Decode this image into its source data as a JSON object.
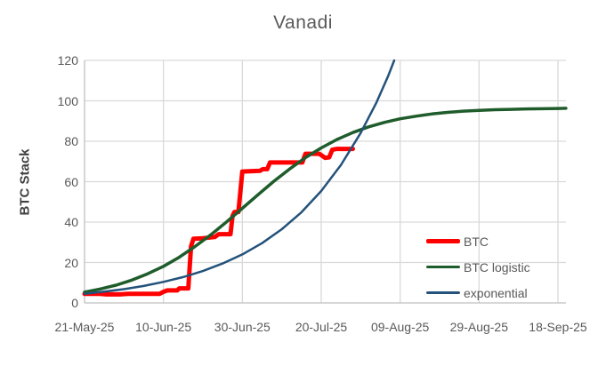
{
  "title": "Vanadi",
  "chart_data": {
    "type": "line",
    "title": "Vanadi",
    "xlabel": "",
    "ylabel": "BTC Stack",
    "ylim": [
      0,
      120
    ],
    "y_ticks": [
      0,
      20,
      40,
      60,
      80,
      100,
      120
    ],
    "x_unit": "days since 21-May-25",
    "xlim": [
      0,
      122
    ],
    "x_tick_days": [
      0,
      20,
      40,
      60,
      80,
      100,
      120
    ],
    "x_tick_labels": [
      "21-May-25",
      "10-Jun-25",
      "30-Jun-25",
      "20-Jul-25",
      "09-Aug-25",
      "29-Aug-25",
      "18-Sep-25"
    ],
    "grid": true,
    "legend_position": "inside-bottom-right",
    "series": [
      {
        "name": "BTC",
        "color": "#FF0000",
        "width": 5,
        "points": [
          [
            0,
            4.5
          ],
          [
            4,
            4.5
          ],
          [
            5.5,
            4.2
          ],
          [
            9,
            4.2
          ],
          [
            11,
            4.5
          ],
          [
            19,
            4.5
          ],
          [
            20,
            5.5
          ],
          [
            21,
            6.2
          ],
          [
            23.5,
            6.2
          ],
          [
            24,
            7.2
          ],
          [
            26.3,
            7.2
          ],
          [
            27,
            28
          ],
          [
            27.6,
            31.8
          ],
          [
            30,
            32
          ],
          [
            33,
            32.6
          ],
          [
            34,
            34
          ],
          [
            37,
            34
          ],
          [
            37.5,
            43
          ],
          [
            38,
            45
          ],
          [
            39,
            45
          ],
          [
            39.5,
            55
          ],
          [
            40,
            65
          ],
          [
            44.5,
            65.4
          ],
          [
            45.2,
            66.2
          ],
          [
            46.3,
            66.2
          ],
          [
            47,
            69.5
          ],
          [
            55.2,
            69.5
          ],
          [
            56,
            73.8
          ],
          [
            59.5,
            73.8
          ],
          [
            61,
            71.8
          ],
          [
            62,
            72
          ],
          [
            62.8,
            75.8
          ],
          [
            64,
            76.2
          ],
          [
            68,
            76.2
          ]
        ]
      },
      {
        "name": "BTC logistic",
        "color": "#1F5C2B",
        "width": 3.5,
        "points": [
          [
            0,
            5.3
          ],
          [
            4,
            6.9
          ],
          [
            8,
            8.8
          ],
          [
            12,
            11.3
          ],
          [
            16,
            14.4
          ],
          [
            20,
            18.1
          ],
          [
            24,
            22.6
          ],
          [
            28,
            27.9
          ],
          [
            32,
            33.7
          ],
          [
            36,
            40.1
          ],
          [
            40,
            46.8
          ],
          [
            44,
            53.6
          ],
          [
            48,
            60.2
          ],
          [
            52,
            66.3
          ],
          [
            56,
            71.9
          ],
          [
            60,
            76.7
          ],
          [
            64,
            80.9
          ],
          [
            68,
            84.3
          ],
          [
            72,
            87.1
          ],
          [
            76,
            89.3
          ],
          [
            80,
            91.1
          ],
          [
            84,
            92.4
          ],
          [
            88,
            93.5
          ],
          [
            92,
            94.3
          ],
          [
            96,
            94.9
          ],
          [
            100,
            95.3
          ],
          [
            104,
            95.6
          ],
          [
            108,
            95.8
          ],
          [
            112,
            96.0
          ],
          [
            116,
            96.1
          ],
          [
            120,
            96.2
          ],
          [
            122,
            96.3
          ]
        ]
      },
      {
        "name": "exponential",
        "color": "#24527A",
        "width": 2.5,
        "points": [
          [
            0,
            4.5
          ],
          [
            5,
            5.6
          ],
          [
            10,
            6.8
          ],
          [
            15,
            8.4
          ],
          [
            20,
            10.4
          ],
          [
            25,
            12.8
          ],
          [
            30,
            15.8
          ],
          [
            35,
            19.5
          ],
          [
            40,
            24
          ],
          [
            45,
            29.6
          ],
          [
            50,
            36.5
          ],
          [
            55,
            44.9
          ],
          [
            60,
            55.4
          ],
          [
            65,
            68.3
          ],
          [
            70,
            84.1
          ],
          [
            74,
            99.2
          ],
          [
            77,
            112.5
          ],
          [
            78.5,
            120
          ]
        ]
      }
    ]
  },
  "colors": {
    "background": "#FFFFFF",
    "gridline": "#D9D9D9",
    "axis_line": "#BFBFBF",
    "tick_text": "#595959",
    "title_text": "#595959",
    "axis_title_text": "#404040"
  }
}
